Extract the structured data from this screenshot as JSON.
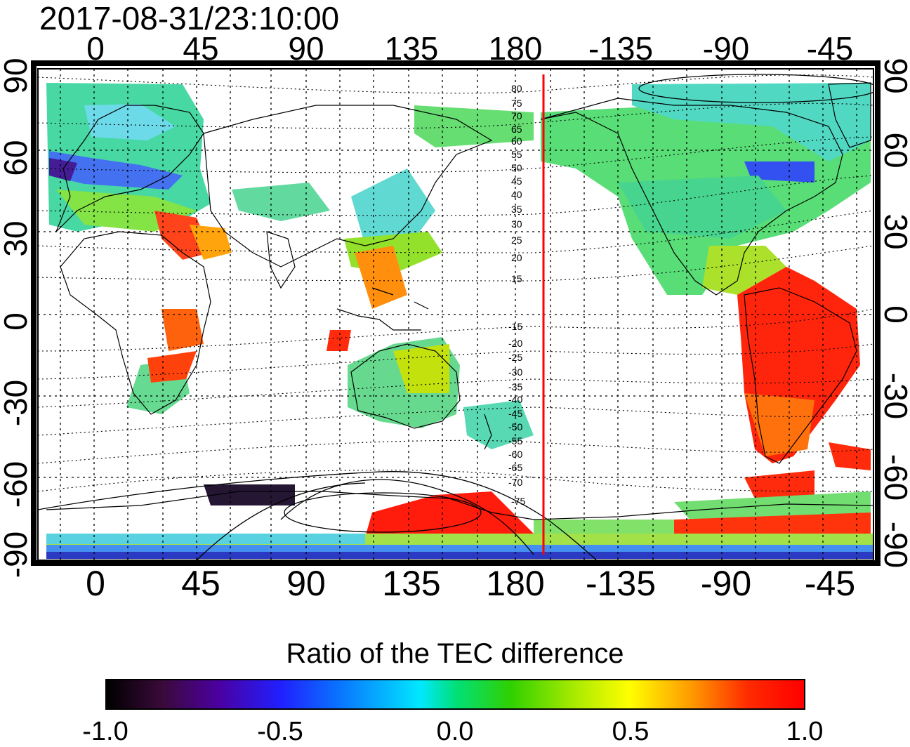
{
  "header": {
    "timestamp": "2017-08-31/23:10:00"
  },
  "map": {
    "lon_ticks_top": [
      "0",
      "45",
      "90",
      "135",
      "180",
      "-135",
      "-90",
      "-45"
    ],
    "lon_ticks_bottom": [
      "0",
      "45",
      "90",
      "135",
      "180",
      "-135",
      "-90",
      "-45"
    ],
    "lat_ticks_left": [
      "90",
      "60",
      "30",
      "0",
      "-30",
      "-60",
      "-90"
    ],
    "lat_ticks_right": [
      "90",
      "60",
      "30",
      "0",
      "-30",
      "-60",
      "-90"
    ],
    "magnetic_lat_labels_north": [
      "80",
      "75",
      "70",
      "65",
      "60",
      "55",
      "50",
      "45",
      "40",
      "35",
      "30",
      "25",
      "20",
      "15"
    ],
    "magnetic_lat_labels_south": [
      "-15",
      "-20",
      "-25",
      "-30",
      "-35",
      "-40",
      "-45",
      "-50",
      "-55",
      "-60",
      "-65",
      "-70",
      "-75"
    ],
    "terminator_longitude": 192,
    "terminator_color": "#ff0000"
  },
  "colorbar": {
    "title": "Ratio of the TEC difference",
    "ticks": [
      "-1.0",
      "-0.5",
      "0.0",
      "0.5",
      "1.0"
    ],
    "colors": [
      "#000000",
      "#4b00a0",
      "#2020ff",
      "#00e8ff",
      "#00e07a",
      "#30d000",
      "#a8ea00",
      "#ffff00",
      "#ff9800",
      "#ff0000"
    ]
  }
}
